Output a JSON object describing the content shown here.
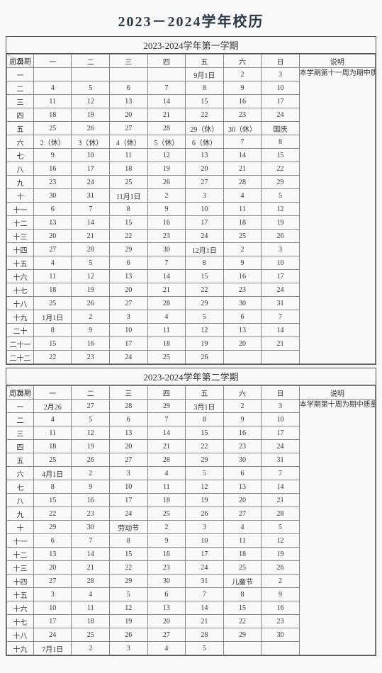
{
  "page_title": "2023－2024学年校历",
  "row_header_top": "日期",
  "row_header_bottom": "周次",
  "note_header": "说明",
  "day_headers": [
    "一",
    "二",
    "三",
    "四",
    "五",
    "六",
    "日"
  ],
  "semesters": [
    {
      "title": "2023-2024学年第一学期",
      "note": "本学期第十一周为期中质量检查周，第二十二周进行期末考试、总结。本学期9月1日开学，到2024年1月26日结束，寒假四周。（2024年1月27日到2024年2月25日）",
      "note_rowspan": 22,
      "weeks": [
        {
          "label": "一",
          "cells": [
            "",
            "",
            "",
            "",
            "9月1日",
            "2",
            "3"
          ]
        },
        {
          "label": "二",
          "cells": [
            "4",
            "5",
            "6",
            "7",
            "8",
            "9",
            "10"
          ]
        },
        {
          "label": "三",
          "cells": [
            "11",
            "12",
            "13",
            "14",
            "15",
            "16",
            "17"
          ]
        },
        {
          "label": "四",
          "cells": [
            "18",
            "19",
            "20",
            "21",
            "22",
            "23",
            "24"
          ]
        },
        {
          "label": "五",
          "cells": [
            "25",
            "26",
            "27",
            "28",
            "29（休）",
            "30（休）",
            "国庆"
          ]
        },
        {
          "label": "六",
          "cells": [
            "2（休）",
            "3（休）",
            "4（休）",
            "5（休）",
            "6（休）",
            "7",
            "8"
          ]
        },
        {
          "label": "七",
          "cells": [
            "9",
            "10",
            "11",
            "12",
            "13",
            "14",
            "15"
          ]
        },
        {
          "label": "八",
          "cells": [
            "16",
            "17",
            "18",
            "19",
            "20",
            "21",
            "22"
          ]
        },
        {
          "label": "九",
          "cells": [
            "23",
            "24",
            "25",
            "26",
            "27",
            "28",
            "29"
          ]
        },
        {
          "label": "十",
          "cells": [
            "30",
            "31",
            "11月1日",
            "2",
            "3",
            "4",
            "5"
          ]
        },
        {
          "label": "十一",
          "cells": [
            "6",
            "7",
            "8",
            "9",
            "10",
            "11",
            "12"
          ]
        },
        {
          "label": "十二",
          "cells": [
            "13",
            "14",
            "15",
            "16",
            "17",
            "18",
            "19"
          ]
        },
        {
          "label": "十三",
          "cells": [
            "20",
            "21",
            "22",
            "23",
            "24",
            "25",
            "26"
          ]
        },
        {
          "label": "十四",
          "cells": [
            "27",
            "28",
            "29",
            "30",
            "12月1日",
            "2",
            "3"
          ]
        },
        {
          "label": "十五",
          "cells": [
            "4",
            "5",
            "6",
            "7",
            "8",
            "9",
            "10"
          ]
        },
        {
          "label": "十六",
          "cells": [
            "11",
            "12",
            "13",
            "14",
            "15",
            "16",
            "17"
          ]
        },
        {
          "label": "十七",
          "cells": [
            "18",
            "19",
            "20",
            "21",
            "22",
            "23",
            "24"
          ]
        },
        {
          "label": "十八",
          "cells": [
            "25",
            "26",
            "27",
            "28",
            "29",
            "30",
            "31"
          ]
        },
        {
          "label": "十九",
          "cells": [
            "1月1日",
            "2",
            "3",
            "4",
            "5",
            "6",
            "7"
          ]
        },
        {
          "label": "二十",
          "cells": [
            "8",
            "9",
            "10",
            "11",
            "12",
            "13",
            "14"
          ]
        },
        {
          "label": "二十一",
          "cells": [
            "15",
            "16",
            "17",
            "18",
            "19",
            "20",
            "21"
          ]
        },
        {
          "label": "二十二",
          "cells": [
            "22",
            "23",
            "24",
            "25",
            "26",
            "",
            ""
          ]
        }
      ]
    },
    {
      "title": "2023-2024学年第二学期",
      "note": "本学期第十周为期中质量检查周，第十九周进行期末考试、总结。本学期2月26日开学，到7月5日结束，暑假八周。（2024年7月6日到2024年8月31日）",
      "note_rowspan": 19,
      "weeks": [
        {
          "label": "一",
          "cells": [
            "2月26",
            "27",
            "28",
            "29",
            "3月1日",
            "2",
            "3"
          ]
        },
        {
          "label": "二",
          "cells": [
            "4",
            "5",
            "6",
            "7",
            "8",
            "9",
            "10"
          ]
        },
        {
          "label": "三",
          "cells": [
            "11",
            "12",
            "13",
            "14",
            "15",
            "16",
            "17"
          ]
        },
        {
          "label": "四",
          "cells": [
            "18",
            "19",
            "20",
            "21",
            "22",
            "23",
            "24"
          ]
        },
        {
          "label": "五",
          "cells": [
            "25",
            "26",
            "27",
            "28",
            "29",
            "30",
            "31"
          ]
        },
        {
          "label": "六",
          "cells": [
            "4月1日",
            "2",
            "3",
            "4",
            "5",
            "6",
            "7"
          ]
        },
        {
          "label": "七",
          "cells": [
            "8",
            "9",
            "10",
            "11",
            "12",
            "13",
            "14"
          ]
        },
        {
          "label": "八",
          "cells": [
            "15",
            "16",
            "17",
            "18",
            "19",
            "20",
            "21"
          ]
        },
        {
          "label": "九",
          "cells": [
            "22",
            "23",
            "24",
            "25",
            "26",
            "27",
            "28"
          ]
        },
        {
          "label": "十",
          "cells": [
            "29",
            "30",
            "劳动节",
            "2",
            "3",
            "4",
            "5"
          ]
        },
        {
          "label": "十一",
          "cells": [
            "6",
            "7",
            "8",
            "9",
            "10",
            "11",
            "12"
          ]
        },
        {
          "label": "十二",
          "cells": [
            "13",
            "14",
            "15",
            "16",
            "17",
            "18",
            "19"
          ]
        },
        {
          "label": "十三",
          "cells": [
            "20",
            "21",
            "22",
            "23",
            "24",
            "25",
            "26"
          ]
        },
        {
          "label": "十四",
          "cells": [
            "27",
            "28",
            "29",
            "30",
            "31",
            "儿童节",
            "2"
          ]
        },
        {
          "label": "十五",
          "cells": [
            "3",
            "4",
            "5",
            "6",
            "7",
            "8",
            "9"
          ]
        },
        {
          "label": "十六",
          "cells": [
            "10",
            "11",
            "12",
            "13",
            "14",
            "15",
            "16"
          ]
        },
        {
          "label": "十七",
          "cells": [
            "17",
            "18",
            "19",
            "20",
            "21",
            "22",
            "23"
          ]
        },
        {
          "label": "十八",
          "cells": [
            "24",
            "25",
            "26",
            "27",
            "28",
            "29",
            "30"
          ]
        },
        {
          "label": "十九",
          "cells": [
            "7月1日",
            "2",
            "3",
            "4",
            "5",
            "",
            ""
          ]
        }
      ]
    }
  ],
  "colors": {
    "border": "#555555",
    "grid": "#888888",
    "text": "#333333",
    "background": "#f8f8f8"
  }
}
